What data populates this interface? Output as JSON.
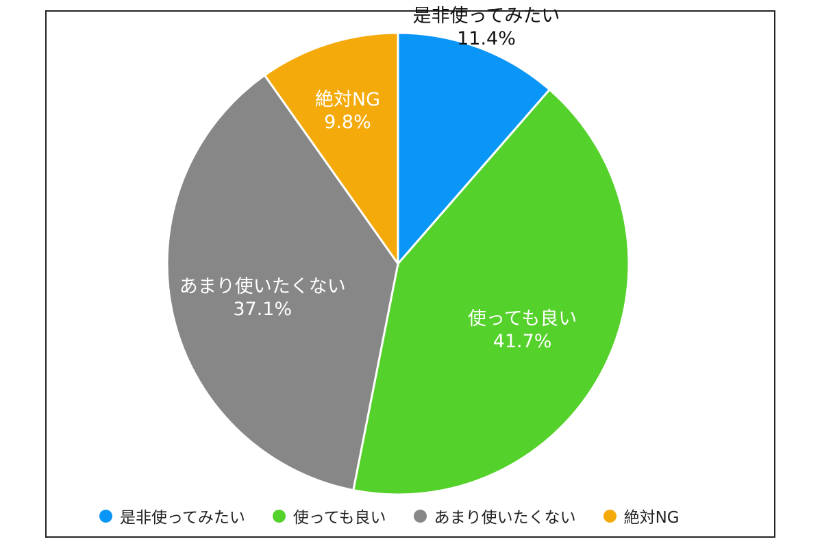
{
  "chart_data": {
    "type": "pie",
    "start": "top, clockwise",
    "slices": [
      {
        "label": "是非使ってみたい",
        "value": 11.4,
        "value_label": "11.4%",
        "color": "#0a96f6",
        "label_color": "#111111"
      },
      {
        "label": "使っても良い",
        "value": 41.7,
        "value_label": "41.7%",
        "color": "#55d12b",
        "label_color": "#ffffff"
      },
      {
        "label": "あまり使いたくない",
        "value": 37.1,
        "value_label": "37.1%",
        "color": "#878787",
        "label_color": "#ffffff"
      },
      {
        "label": "絶対NG",
        "value": 9.8,
        "value_label": "9.8%",
        "color": "#f5aa0b",
        "label_color": "#ffffff"
      }
    ],
    "legend": {
      "position": "bottom",
      "items": [
        {
          "label": "是非使ってみたい",
          "color": "#0a96f6"
        },
        {
          "label": "使っても良い",
          "color": "#55d12b"
        },
        {
          "label": "あまり使いたくない",
          "color": "#878787"
        },
        {
          "label": "絶対NG",
          "color": "#f5aa0b"
        }
      ]
    }
  }
}
